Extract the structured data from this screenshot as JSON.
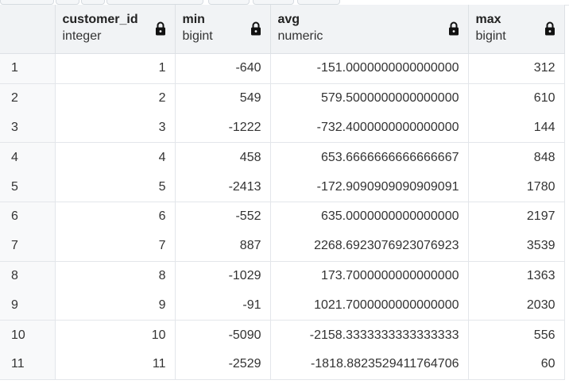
{
  "columns": [
    {
      "name": "customer_id",
      "type": "integer",
      "icon": "lock-icon"
    },
    {
      "name": "min",
      "type": "bigint",
      "icon": "lock-icon"
    },
    {
      "name": "avg",
      "type": "numeric",
      "icon": "lock-icon"
    },
    {
      "name": "max",
      "type": "bigint",
      "icon": "lock-icon"
    }
  ],
  "rows": [
    {
      "n": "1",
      "customer_id": "1",
      "min": "-640",
      "avg": "-151.0000000000000000",
      "max": "312"
    },
    {
      "n": "2",
      "customer_id": "2",
      "min": "549",
      "avg": "579.5000000000000000",
      "max": "610"
    },
    {
      "n": "3",
      "customer_id": "3",
      "min": "-1222",
      "avg": "-732.4000000000000000",
      "max": "144"
    },
    {
      "n": "4",
      "customer_id": "4",
      "min": "458",
      "avg": "653.6666666666666667",
      "max": "848"
    },
    {
      "n": "5",
      "customer_id": "5",
      "min": "-2413",
      "avg": "-172.9090909090909091",
      "max": "1780"
    },
    {
      "n": "6",
      "customer_id": "6",
      "min": "-552",
      "avg": "635.0000000000000000",
      "max": "2197"
    },
    {
      "n": "7",
      "customer_id": "7",
      "min": "887",
      "avg": "2268.6923076923076923",
      "max": "3539"
    },
    {
      "n": "8",
      "customer_id": "8",
      "min": "-1029",
      "avg": "173.7000000000000000",
      "max": "1363"
    },
    {
      "n": "9",
      "customer_id": "9",
      "min": "-91",
      "avg": "1021.7000000000000000",
      "max": "2030"
    },
    {
      "n": "10",
      "customer_id": "10",
      "min": "-5090",
      "avg": "-2158.3333333333333333",
      "max": "556"
    },
    {
      "n": "11",
      "customer_id": "11",
      "min": "-2529",
      "avg": "-1818.8823529411764706",
      "max": "60"
    }
  ]
}
